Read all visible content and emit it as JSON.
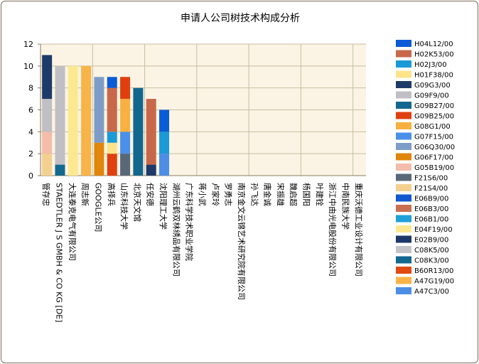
{
  "chart_data": {
    "type": "bar",
    "stacked": true,
    "title": "申请人公司树技术构成分析",
    "ylim": [
      0,
      12
    ],
    "yticks": [
      0,
      2,
      4,
      6,
      8,
      10,
      12
    ],
    "grid": true,
    "legend_position": "right",
    "categories": [
      "管存忠",
      "STAEDTLER J S GMBH & CO KG [DE]",
      "大连泰克电气有限公司",
      "周志新",
      "GOOGLE公司",
      "高择兵",
      "山东科技大学",
      "北京天文馆",
      "任安德",
      "沈阳理工大学",
      "湖州云鹤双林绣品有限公司",
      "广东科学技术职业学院",
      "蒋小武",
      "卢家玲",
      "罗勇志",
      "南京金文云锦艺术研究院有限公司",
      "孙飞达",
      "唐金诚",
      "宋振雄",
      "魏启超",
      "杨国阳",
      "叶建铨",
      "浙江中由光电股份有限公司",
      "中南民族大学",
      "重庆沃德工业设计有限公司"
    ],
    "series": [
      {
        "name": "H04L12/00",
        "color": "#0a5bd6",
        "values": [
          0,
          0,
          0,
          0,
          0,
          1,
          0,
          0,
          0,
          2,
          0,
          0,
          0,
          0,
          0,
          0,
          0,
          0,
          0,
          0,
          0,
          0,
          0,
          0,
          0
        ]
      },
      {
        "name": "H02K53/00",
        "color": "#c8684a",
        "values": [
          0,
          0,
          0,
          0,
          0,
          4,
          0,
          0,
          6,
          0,
          0,
          0,
          0,
          0,
          0,
          0,
          0,
          0,
          0,
          0,
          0,
          0,
          0,
          0,
          0
        ]
      },
      {
        "name": "H02J3/00",
        "color": "#1a9ad6",
        "values": [
          0,
          0,
          0,
          0,
          0,
          1,
          0,
          0,
          0,
          2,
          0,
          0,
          0,
          0,
          0,
          0,
          0,
          0,
          0,
          0,
          0,
          0,
          0,
          0,
          0
        ]
      },
      {
        "name": "H01F38/00",
        "color": "#fde48a",
        "values": [
          0,
          0,
          0,
          0,
          0,
          1,
          0,
          0,
          0,
          0,
          0,
          0,
          0,
          0,
          0,
          0,
          0,
          0,
          0,
          0,
          0,
          0,
          0,
          0,
          0
        ]
      },
      {
        "name": "G09G3/00",
        "color": "#1e3a68",
        "values": [
          4,
          0,
          0,
          0,
          0,
          0,
          0,
          0,
          1,
          0,
          0,
          0,
          0,
          0,
          0,
          0,
          0,
          0,
          0,
          0,
          0,
          0,
          0,
          0,
          0
        ]
      },
      {
        "name": "G09F9/00",
        "color": "#c0bfc4",
        "values": [
          3,
          9,
          0,
          0,
          0,
          0,
          0,
          0,
          0,
          0,
          0,
          0,
          0,
          0,
          0,
          0,
          0,
          0,
          0,
          0,
          0,
          0,
          0,
          0,
          0
        ]
      },
      {
        "name": "G09B27/00",
        "color": "#12678e",
        "values": [
          0,
          0,
          0,
          0,
          0,
          0,
          0,
          8,
          0,
          0,
          0,
          0,
          0,
          0,
          0,
          0,
          0,
          0,
          0,
          0,
          0,
          0,
          0,
          0,
          0
        ]
      },
      {
        "name": "G09B25/00",
        "color": "#e04010",
        "values": [
          0,
          0,
          0,
          0,
          0,
          2,
          2,
          0,
          0,
          0,
          0,
          0,
          0,
          0,
          0,
          0,
          0,
          0,
          0,
          0,
          0,
          0,
          0,
          0,
          0
        ]
      },
      {
        "name": "G08G1/00",
        "color": "#f8b040",
        "values": [
          0,
          0,
          0,
          0,
          0,
          0,
          3,
          0,
          0,
          0,
          0,
          0,
          0,
          0,
          0,
          0,
          0,
          0,
          0,
          0,
          0,
          0,
          0,
          0,
          0
        ]
      },
      {
        "name": "G07F15/00",
        "color": "#4a90e8",
        "values": [
          0,
          0,
          0,
          0,
          0,
          0,
          2,
          0,
          0,
          0,
          0,
          0,
          0,
          0,
          0,
          0,
          0,
          0,
          0,
          0,
          0,
          0,
          0,
          0,
          0
        ]
      },
      {
        "name": "G06Q30/00",
        "color": "#7d9cc8",
        "values": [
          0,
          0,
          0,
          0,
          6,
          0,
          0,
          0,
          0,
          0,
          0,
          0,
          0,
          0,
          0,
          0,
          0,
          0,
          0,
          0,
          0,
          0,
          0,
          0,
          0
        ]
      },
      {
        "name": "G06F17/00",
        "color": "#e0860a",
        "values": [
          0,
          0,
          0,
          0,
          3,
          0,
          0,
          0,
          0,
          0,
          0,
          0,
          0,
          0,
          0,
          0,
          0,
          0,
          0,
          0,
          0,
          0,
          0,
          0,
          0
        ]
      },
      {
        "name": "G05B19/00",
        "color": "#f4bcaa",
        "values": [
          2,
          0,
          0,
          0,
          0,
          0,
          0,
          0,
          0,
          0,
          0,
          0,
          0,
          0,
          0,
          0,
          0,
          0,
          0,
          0,
          0,
          0,
          0,
          0,
          0
        ]
      },
      {
        "name": "F21S6/00",
        "color": "#586878",
        "values": [
          0,
          0,
          0,
          0,
          0,
          0,
          2,
          0,
          0,
          0,
          0,
          0,
          0,
          0,
          0,
          0,
          0,
          0,
          0,
          0,
          0,
          0,
          0,
          0,
          0
        ]
      },
      {
        "name": "F21S4/00",
        "color": "#f4d090",
        "values": [
          2,
          0,
          0,
          0,
          0,
          0,
          0,
          0,
          0,
          0,
          0,
          0,
          0,
          0,
          0,
          0,
          0,
          0,
          0,
          0,
          0,
          0,
          0,
          0,
          0
        ]
      },
      {
        "name": "E06B9/00",
        "color": "#1058d0",
        "values": [
          0,
          0,
          0,
          0,
          0,
          0,
          0,
          0,
          0,
          0,
          0,
          0,
          0,
          0,
          0,
          0,
          0,
          0,
          0,
          0,
          0,
          0,
          0,
          0,
          0
        ]
      },
      {
        "name": "E06B3/00",
        "color": "#c87050",
        "values": [
          0,
          0,
          0,
          0,
          0,
          0,
          0,
          0,
          0,
          0,
          0,
          0,
          0,
          0,
          0,
          0,
          0,
          0,
          0,
          0,
          0,
          0,
          0,
          0,
          0
        ]
      },
      {
        "name": "E06B1/00",
        "color": "#20a0d8",
        "values": [
          0,
          0,
          0,
          0,
          0,
          0,
          0,
          0,
          0,
          0,
          0,
          0,
          0,
          0,
          0,
          0,
          0,
          0,
          0,
          0,
          0,
          0,
          0,
          0,
          0
        ]
      },
      {
        "name": "E04F19/00",
        "color": "#fce890",
        "values": [
          0,
          0,
          10,
          0,
          0,
          0,
          0,
          0,
          0,
          0,
          0,
          0,
          0,
          0,
          0,
          0,
          0,
          0,
          0,
          0,
          0,
          0,
          0,
          0,
          0
        ]
      },
      {
        "name": "E02B9/00",
        "color": "#1c3868",
        "values": [
          0,
          0,
          0,
          0,
          0,
          0,
          0,
          0,
          0,
          0,
          0,
          0,
          0,
          0,
          0,
          0,
          0,
          0,
          0,
          0,
          0,
          0,
          0,
          0,
          0
        ]
      },
      {
        "name": "C08K5/00",
        "color": "#c4c4c8",
        "values": [
          0,
          0,
          0,
          0,
          0,
          0,
          0,
          0,
          0,
          0,
          0,
          0,
          0,
          0,
          0,
          0,
          0,
          0,
          0,
          0,
          0,
          0,
          0,
          0,
          0
        ]
      },
      {
        "name": "C08K3/00",
        "color": "#136890",
        "values": [
          0,
          1,
          0,
          0,
          0,
          0,
          0,
          0,
          0,
          0,
          0,
          0,
          0,
          0,
          0,
          0,
          0,
          0,
          0,
          0,
          0,
          0,
          0,
          0,
          0
        ]
      },
      {
        "name": "B60R13/00",
        "color": "#e04a12",
        "values": [
          0,
          0,
          0,
          0,
          0,
          0,
          0,
          0,
          0,
          0,
          0,
          0,
          0,
          0,
          0,
          0,
          0,
          0,
          0,
          0,
          0,
          0,
          0,
          0,
          0
        ]
      },
      {
        "name": "A47G19/00",
        "color": "#f8b448",
        "values": [
          0,
          0,
          0,
          10,
          0,
          0,
          0,
          0,
          0,
          0,
          0,
          0,
          0,
          0,
          0,
          0,
          0,
          0,
          0,
          0,
          0,
          0,
          0,
          0,
          0
        ]
      },
      {
        "name": "A47C3/00",
        "color": "#4c8ee6",
        "values": [
          0,
          0,
          0,
          0,
          0,
          0,
          0,
          0,
          0,
          2,
          0,
          0,
          0,
          0,
          0,
          0,
          0,
          0,
          0,
          0,
          0,
          0,
          0,
          0,
          0
        ]
      }
    ]
  }
}
